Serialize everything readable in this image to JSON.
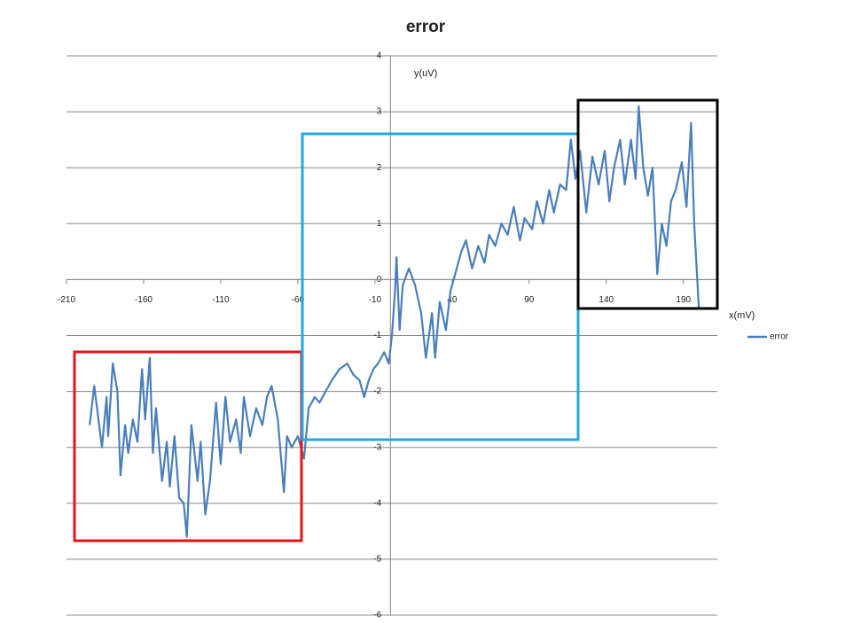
{
  "chart_data": {
    "type": "line",
    "title": "error",
    "x_label": "x(mV)",
    "y_label": "y(uV)",
    "xlim": [
      -210,
      212
    ],
    "ylim": [
      -6,
      4
    ],
    "xticks": [
      -210,
      -160,
      -110,
      -60,
      -10,
      40,
      90,
      140,
      190
    ],
    "yticks": [
      -6,
      -5,
      -4,
      -3,
      -2,
      -1,
      0,
      1,
      2,
      3,
      4
    ],
    "grid": true,
    "legend": "right",
    "series": [
      {
        "name": "error",
        "color": "#4a7ebb",
        "x": [
          -195,
          -192,
          -187,
          -184,
          -183,
          -180,
          -177,
          -175,
          -172,
          -170,
          -167,
          -164,
          -161,
          -159,
          -156,
          -154,
          -152,
          -148,
          -145,
          -143,
          -140,
          -137,
          -134,
          -132,
          -129,
          -125,
          -123,
          -120,
          -117,
          -113,
          -110,
          -107,
          -104,
          -100,
          -97,
          -95,
          -91,
          -87,
          -83,
          -80,
          -77,
          -73,
          -69,
          -67,
          -64,
          -60,
          -56,
          -53,
          -49,
          -46,
          -42,
          -38,
          -33,
          -28,
          -24,
          -20,
          -17,
          -14,
          -11,
          -8,
          -4,
          -1,
          1,
          3,
          4,
          6,
          8,
          12,
          16,
          20,
          23,
          27,
          29,
          32,
          36,
          39,
          43,
          46,
          49,
          53,
          57,
          61,
          64,
          68,
          72,
          76,
          80,
          84,
          87,
          92,
          95,
          99,
          103,
          106,
          110,
          114,
          117,
          120,
          123,
          127,
          131,
          135,
          139,
          142,
          145,
          149,
          152,
          156,
          159,
          161,
          164,
          167,
          170,
          173,
          176,
          179,
          182,
          185,
          189,
          192,
          195,
          197,
          200
        ],
        "values": [
          -2.6,
          -1.9,
          -3.0,
          -2.1,
          -2.8,
          -1.5,
          -2.0,
          -3.5,
          -2.6,
          -3.1,
          -2.5,
          -2.9,
          -1.6,
          -2.5,
          -1.4,
          -3.1,
          -2.3,
          -3.6,
          -2.9,
          -3.7,
          -2.8,
          -3.9,
          -4.0,
          -4.6,
          -2.6,
          -3.6,
          -2.9,
          -4.2,
          -3.6,
          -2.2,
          -3.3,
          -2.1,
          -2.9,
          -2.5,
          -3.1,
          -2.1,
          -2.8,
          -2.3,
          -2.6,
          -2.1,
          -1.9,
          -2.5,
          -3.8,
          -2.8,
          -3.0,
          -2.8,
          -3.2,
          -2.3,
          -2.1,
          -2.2,
          -2.0,
          -1.8,
          -1.6,
          -1.5,
          -1.7,
          -1.8,
          -2.1,
          -1.8,
          -1.6,
          -1.5,
          -1.3,
          -1.5,
          -1.0,
          -0.2,
          0.4,
          -0.9,
          -0.1,
          0.2,
          -0.1,
          -0.6,
          -1.4,
          -0.6,
          -1.4,
          -0.4,
          -0.9,
          -0.2,
          0.2,
          0.5,
          0.7,
          0.2,
          0.6,
          0.3,
          0.8,
          0.6,
          1.0,
          0.8,
          1.3,
          0.7,
          1.1,
          0.9,
          1.4,
          1.0,
          1.6,
          1.2,
          1.7,
          1.6,
          2.5,
          1.8,
          2.3,
          1.2,
          2.2,
          1.7,
          2.3,
          1.4,
          2.0,
          2.5,
          1.7,
          2.5,
          1.8,
          3.1,
          2.0,
          1.5,
          2.0,
          0.1,
          1.0,
          0.6,
          1.4,
          1.6,
          2.1,
          1.3,
          2.8,
          1.0,
          -0.5
        ]
      }
    ]
  }
}
